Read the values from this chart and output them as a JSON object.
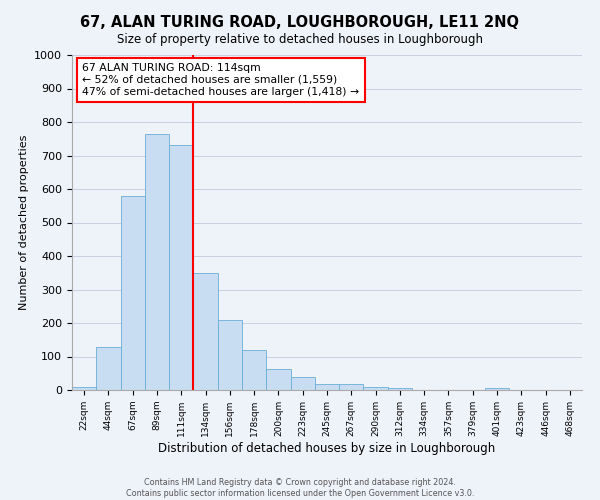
{
  "title": "67, ALAN TURING ROAD, LOUGHBOROUGH, LE11 2NQ",
  "subtitle": "Size of property relative to detached houses in Loughborough",
  "xlabel": "Distribution of detached houses by size in Loughborough",
  "ylabel": "Number of detached properties",
  "bar_labels": [
    "22sqm",
    "44sqm",
    "67sqm",
    "89sqm",
    "111sqm",
    "134sqm",
    "156sqm",
    "178sqm",
    "200sqm",
    "223sqm",
    "245sqm",
    "267sqm",
    "290sqm",
    "312sqm",
    "334sqm",
    "357sqm",
    "379sqm",
    "401sqm",
    "423sqm",
    "446sqm",
    "468sqm"
  ],
  "bar_values": [
    10,
    128,
    580,
    765,
    730,
    350,
    208,
    120,
    63,
    38,
    17,
    17,
    10,
    5,
    0,
    0,
    0,
    7,
    0,
    0,
    0
  ],
  "bar_color": "#c8ddf2",
  "bar_edge_color": "#6aaed6",
  "vline_x": 4.0,
  "vline_color": "red",
  "annotation_title": "67 ALAN TURING ROAD: 114sqm",
  "annotation_line1": "← 52% of detached houses are smaller (1,559)",
  "annotation_line2": "47% of semi-detached houses are larger (1,418) →",
  "annotation_box_color": "white",
  "annotation_box_edge": "red",
  "ylim": [
    0,
    1000
  ],
  "yticks": [
    0,
    100,
    200,
    300,
    400,
    500,
    600,
    700,
    800,
    900,
    1000
  ],
  "footer1": "Contains HM Land Registry data © Crown copyright and database right 2024.",
  "footer2": "Contains public sector information licensed under the Open Government Licence v3.0.",
  "bg_color": "#eef2f9",
  "grid_color": "#c8cfe0"
}
